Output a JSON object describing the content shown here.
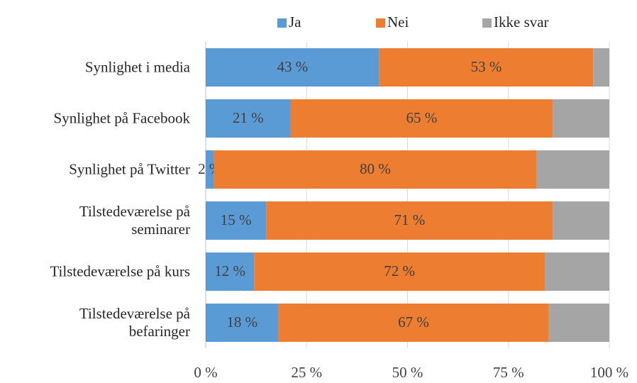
{
  "chart_data": {
    "type": "bar",
    "orientation": "horizontal",
    "stacked": true,
    "categories": [
      "Synlighet i media",
      "Synlighet på Facebook",
      "Synlighet på Twitter",
      "Tilstedeværelse på\nseminarer",
      "Tilstedeværelse på kurs",
      "Tilstedeværelse på\nbefaringer"
    ],
    "series": [
      {
        "name": "Ja",
        "color": "#5b9bd5",
        "values": [
          43,
          21,
          2,
          15,
          12,
          18
        ],
        "value_labels": [
          "43 %",
          "21 %",
          "2 %",
          "15 %",
          "12 %",
          "18 %"
        ]
      },
      {
        "name": "Nei",
        "color": "#ed7d31",
        "values": [
          53,
          65,
          80,
          71,
          72,
          67
        ],
        "value_labels": [
          "53 %",
          "65 %",
          "80 %",
          "71 %",
          "72 %",
          "67 %"
        ]
      },
      {
        "name": "Ikke svar",
        "color": "#a5a5a5",
        "values": [
          4,
          14,
          18,
          14,
          16,
          15
        ]
      }
    ],
    "xlim": [
      0,
      100
    ],
    "xticks": [
      {
        "value": 0,
        "label": "0 %"
      },
      {
        "value": 25,
        "label": "25 %"
      },
      {
        "value": 50,
        "label": "50 %"
      },
      {
        "value": 75,
        "label": "75 %"
      },
      {
        "value": 100,
        "label": "100 %"
      }
    ],
    "grid": true,
    "legend": "top"
  }
}
